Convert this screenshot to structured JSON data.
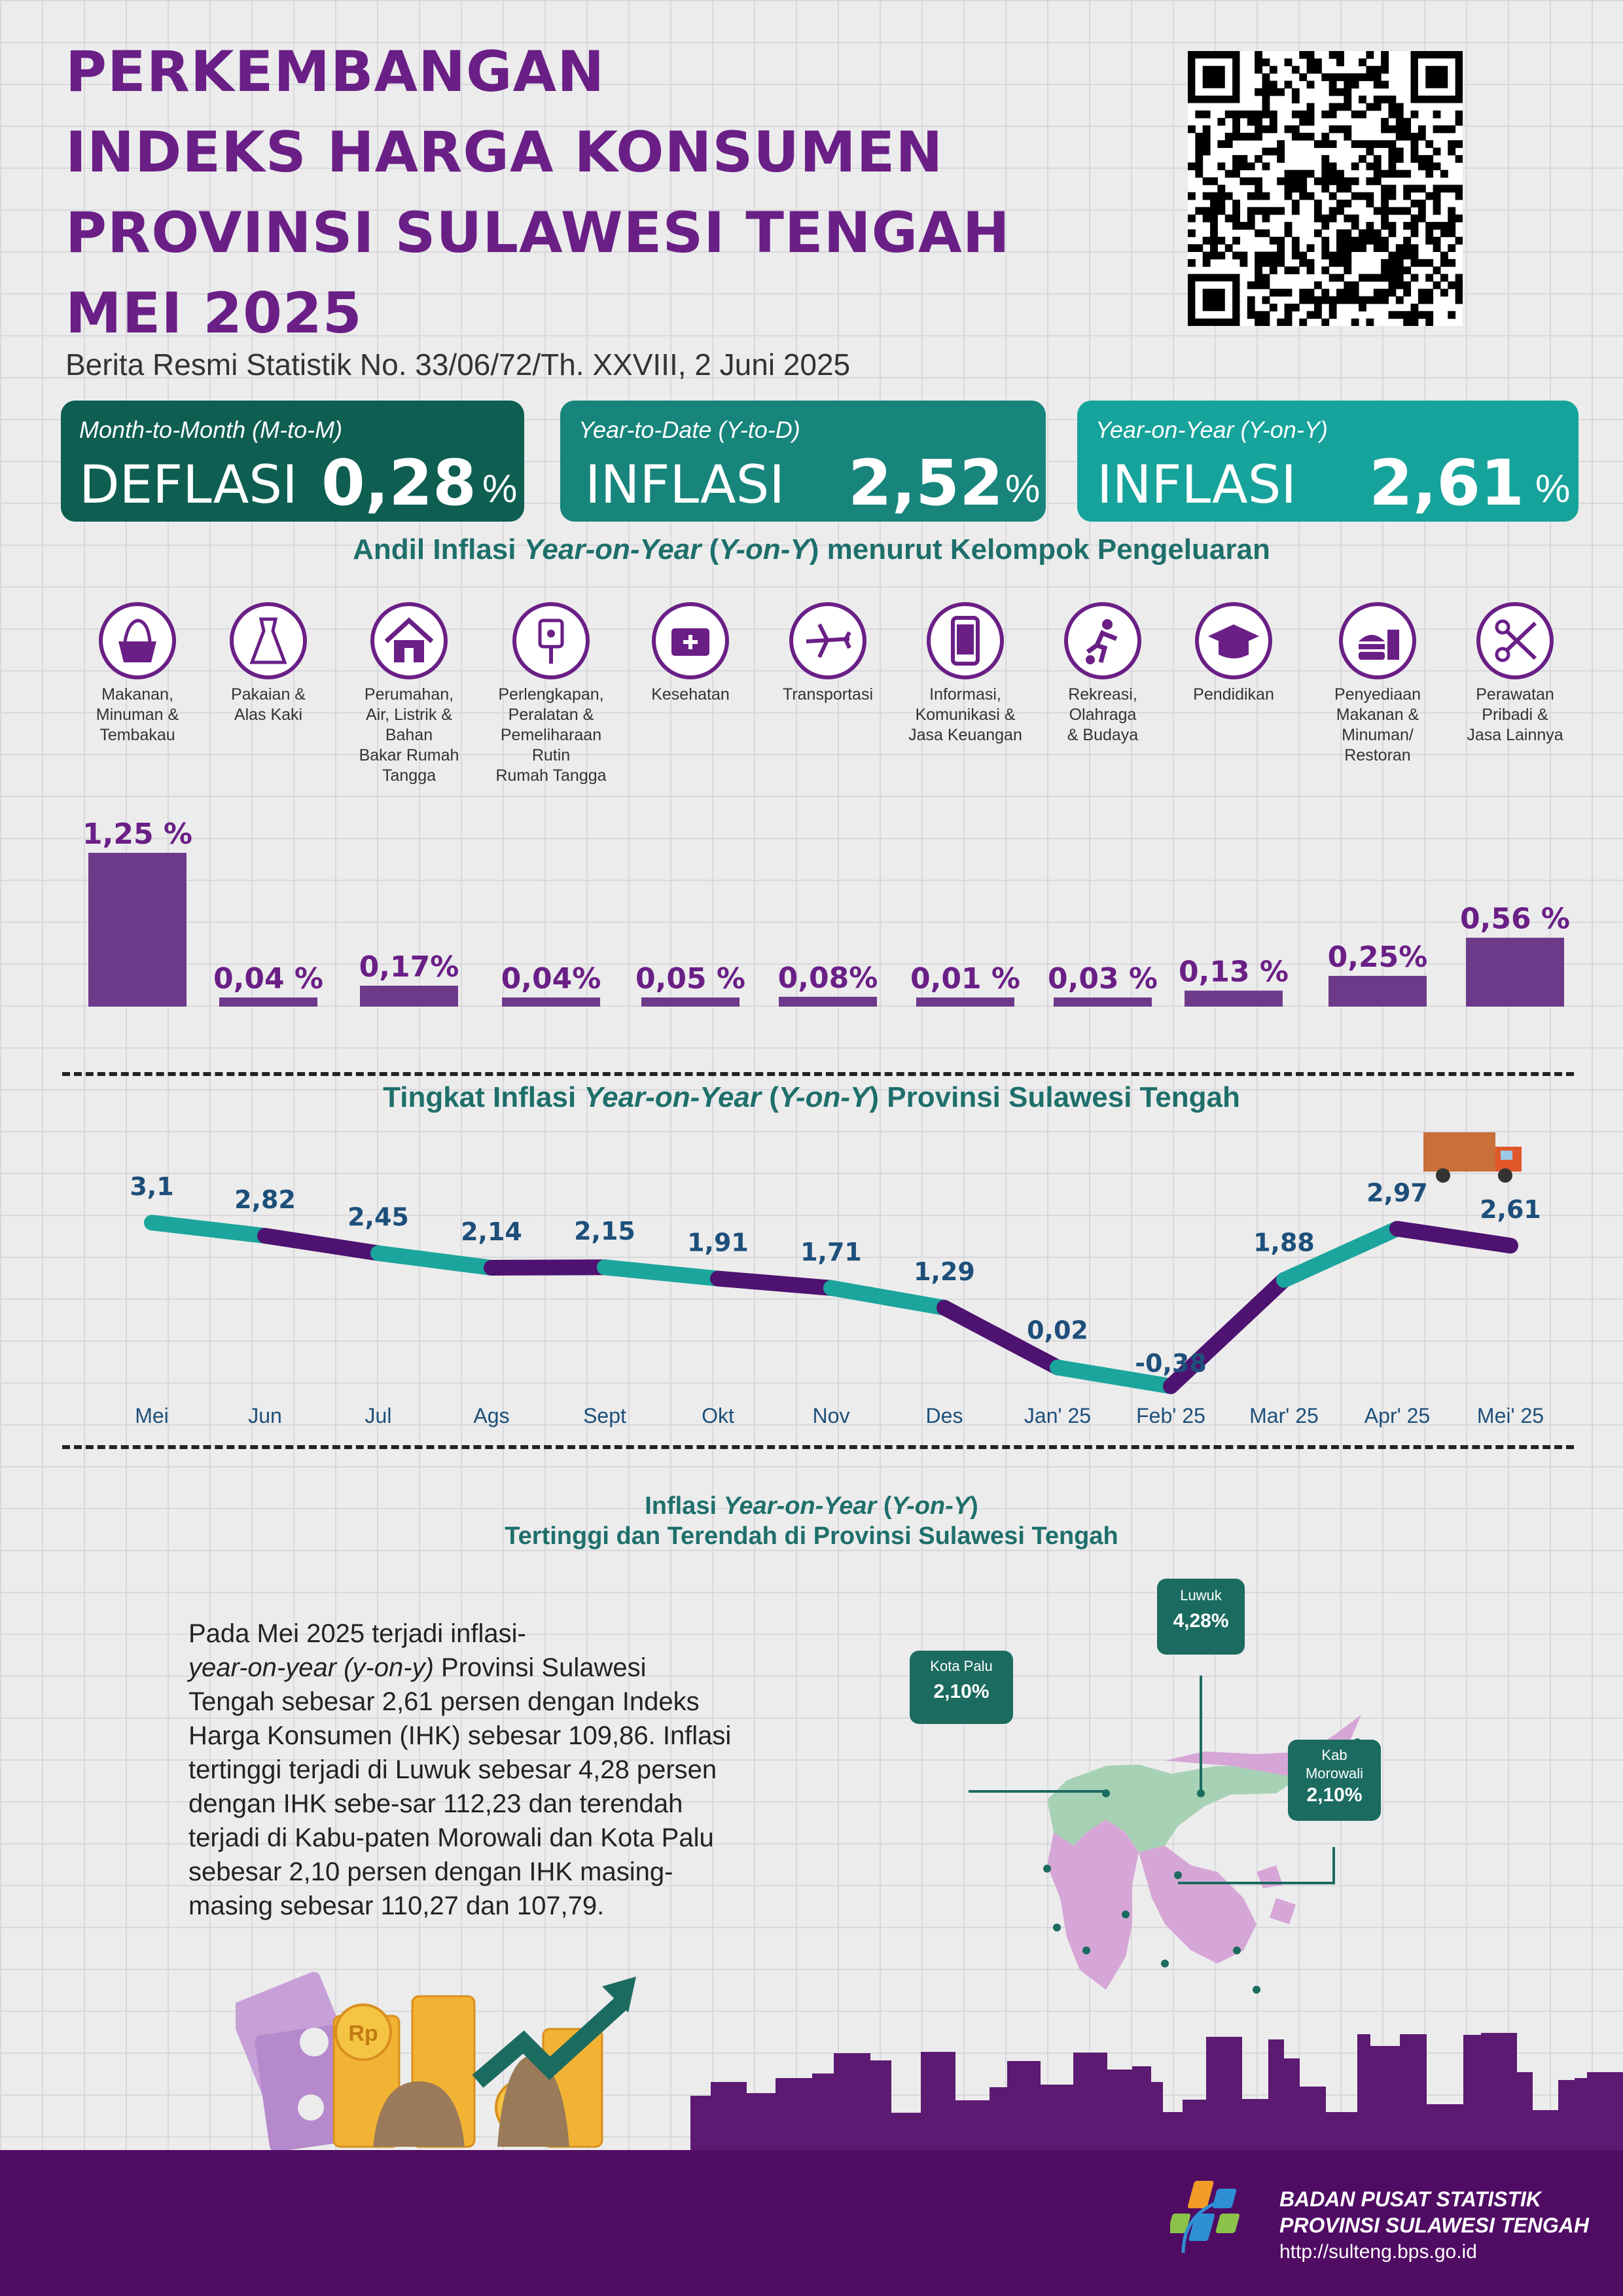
{
  "header": {
    "title_lines": [
      "PERKEMBANGAN",
      "INDEKS HARGA KONSUMEN",
      "PROVINSI SULAWESI TENGAH",
      "MEI 2025"
    ],
    "subtitle": "Berita Resmi Statistik No. 33/06/72/Th. XXVIII, 2 Juni 2025"
  },
  "summary": [
    {
      "period": "Month-to-Month (M-to-M)",
      "kind": "DEFLASI",
      "value": "0,28",
      "unit": "%",
      "color": "#0e5e52"
    },
    {
      "period": "Year-to-Date (Y-to-D)",
      "kind": "INFLASI",
      "value": "2,52",
      "unit": "%",
      "color": "#17857b"
    },
    {
      "period": "Year-on-Year (Y-on-Y)",
      "kind": "INFLASI",
      "value": "2,61",
      "unit": "%",
      "color": "#16a39b"
    }
  ],
  "andil": {
    "title_pre": "Andil Inflasi ",
    "title_it1": "Year-on-Year",
    "title_mid": " (",
    "title_it2": "Y-on-Y",
    "title_post": ") menurut Kelompok Pengeluaran"
  },
  "trend": {
    "title_pre": "Tingkat Inflasi ",
    "title_it1": "Year-on-Year",
    "title_mid": " (",
    "title_it2": "Y-on-Y",
    "title_post": ") Provinsi Sulawesi Tengah"
  },
  "regional": {
    "title_pre": "Inflasi ",
    "title_it1": "Year-on-Year",
    "title_mid": " (",
    "title_it2": "Y-on-Y",
    "title_post": ")",
    "title_line2": "Tertinggi dan Terendah di Provinsi Sulawesi Tengah",
    "callouts": [
      {
        "name": "Kota Palu",
        "value": "2,10%"
      },
      {
        "name": "Luwuk",
        "value": "4,28%"
      },
      {
        "name": "Kab\nMorowali",
        "value": "2,10%"
      }
    ],
    "paragraph": {
      "p1": "Pada Mei 2025 terjadi inflasi-",
      "p2": "year-on-year (y-on-y)",
      "p3": " Provinsi Sulawesi Tengah sebesar 2,61 persen dengan Indeks Harga Konsumen (IHK) sebesar 109,86. Inflasi tertinggi terjadi di Luwuk sebesar 4,28 persen dengan IHK sebe-sar 112,23 dan terendah terjadi di Kabu-paten Morowali dan Kota Palu sebesar 2,10 persen dengan IHK masing-masing sebesar 110,27 dan 107,79."
    }
  },
  "footer": {
    "org_line1": "BADAN PUSAT STATISTIK",
    "org_line2": "PROVINSI SULAWESI TENGAH",
    "url": "http://sulteng.bps.go.id"
  },
  "icons": [
    "food-basket-icon",
    "dress-icon",
    "house-icon",
    "plug-icon",
    "medical-kit-icon",
    "airplane-icon",
    "smartphone-icon",
    "soccer-player-icon",
    "graduation-cap-icon",
    "fastfood-icon",
    "scissors-comb-icon"
  ],
  "colors": {
    "purple": "#6a1f86",
    "bar": "#6d3a8a",
    "teal": "#1ba59d",
    "line_purple": "#4e1270",
    "label_blue": "#1d4f7a"
  },
  "chart_data": [
    {
      "type": "bar",
      "categories": [
        "Makanan,\nMinuman &\nTembakau",
        "Pakaian &\nAlas Kaki",
        "Perumahan,\nAir, Listrik &\nBahan\nBakar Rumah\nTangga",
        "Perlengkapan,\nPeralatan &\nPemeliharaan\nRutin\nRumah Tangga",
        "Kesehatan",
        "Transportasi",
        "Informasi,\nKomunikasi &\nJasa Keuangan",
        "Rekreasi,\nOlahraga\n& Budaya",
        "Pendidikan",
        "Penyediaan\nMakanan &\nMinuman/\nRestoran",
        "Perawatan\nPribadi &\nJasa Lainnya"
      ],
      "values": [
        1.25,
        0.04,
        0.17,
        0.04,
        0.05,
        0.08,
        0.01,
        0.03,
        0.13,
        0.25,
        0.56
      ],
      "value_labels": [
        "1,25 %",
        "0,04 %",
        "0,17%",
        "0,04%",
        "0,05 %",
        "0,08%",
        "0,01 %",
        "0,03 %",
        "0,13 %",
        "0,25%",
        "0,56 %"
      ]
    },
    {
      "type": "line",
      "categories": [
        "Mei",
        "Jun",
        "Jul",
        "Ags",
        "Sept",
        "Okt",
        "Nov",
        "Des",
        "Jan' 25",
        "Feb' 25",
        "Mar' 25",
        "Apr' 25",
        "Mei' 25"
      ],
      "values": [
        3.1,
        2.82,
        2.45,
        2.14,
        2.15,
        1.91,
        1.71,
        1.29,
        0.02,
        -0.38,
        1.88,
        2.97,
        2.61
      ],
      "value_labels": [
        "3,1",
        "2,82",
        "2,45",
        "2,14",
        "2,15",
        "1,91",
        "1,71",
        "1,29",
        "0,02",
        "-0,38",
        "1,88",
        "2,97",
        "2,61"
      ]
    }
  ]
}
